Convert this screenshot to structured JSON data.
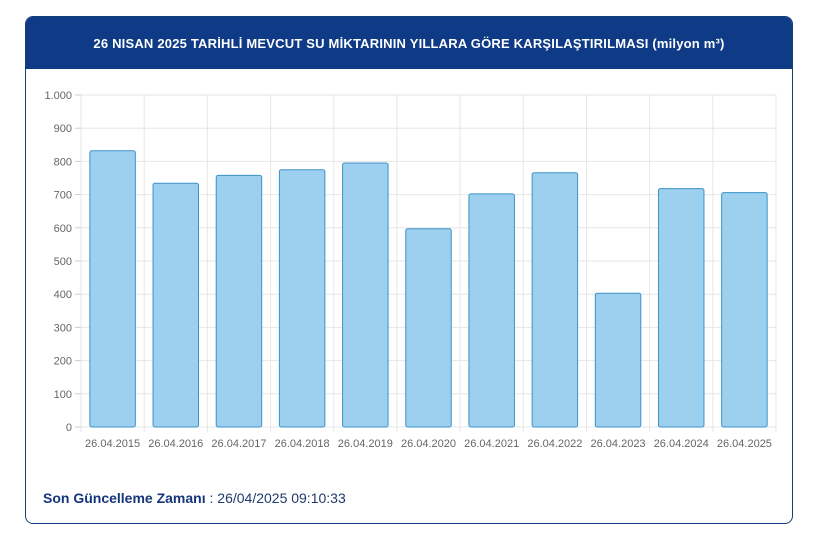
{
  "header": {
    "title": "26 NISAN 2025 TARİHLİ MEVCUT SU MİKTARININ YILLARA GÖRE KARŞILAŞTIRILMASI (milyon m³)"
  },
  "footer": {
    "label": "Son Güncelleme Zamanı",
    "separator": " : ",
    "value": "26/04/2025 09:10:33"
  },
  "colors": {
    "bar_fill": "#9dd0ee",
    "bar_stroke": "#3b93c9",
    "grid": "#e6e6e6",
    "header_bg": "#0e3a86"
  },
  "chart_data": {
    "type": "bar",
    "categories": [
      "26.04.2015",
      "26.04.2016",
      "26.04.2017",
      "26.04.2018",
      "26.04.2019",
      "26.04.2020",
      "26.04.2021",
      "26.04.2022",
      "26.04.2023",
      "26.04.2024",
      "26.04.2025"
    ],
    "values": [
      832,
      734,
      758,
      775,
      795,
      597,
      702,
      766,
      403,
      718,
      706
    ],
    "ylim": [
      0,
      1000
    ],
    "yticks": [
      0,
      100,
      200,
      300,
      400,
      500,
      600,
      700,
      800,
      900,
      1000
    ],
    "ytick_labels": [
      "0",
      "100",
      "200",
      "300",
      "400",
      "500",
      "600",
      "700",
      "800",
      "900",
      "1.000"
    ],
    "grid": true,
    "title": "26 NISAN 2025 TARİHLİ MEVCUT SU MİKTARININ YILLARA GÖRE KARŞILAŞTIRILMASI (milyon m³)",
    "xlabel": "",
    "ylabel": ""
  }
}
